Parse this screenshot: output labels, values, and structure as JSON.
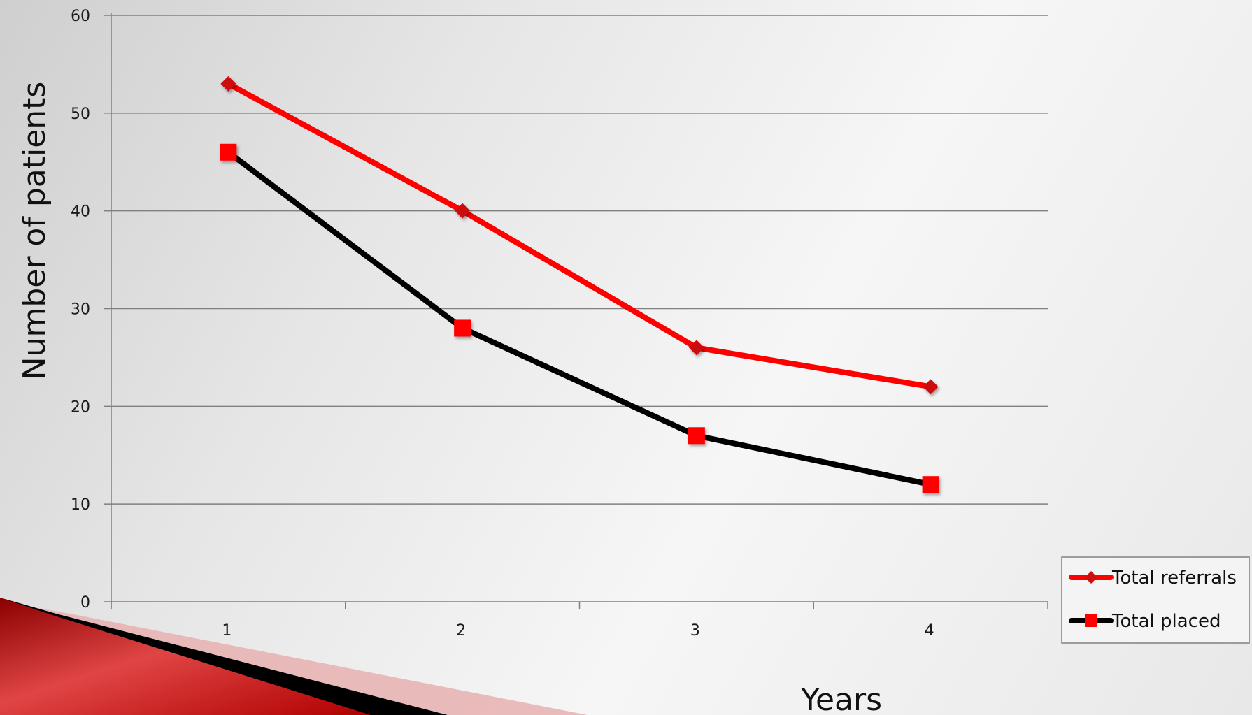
{
  "chart_data": {
    "type": "line",
    "title": "",
    "xlabel": "Years",
    "ylabel": "Number of patients",
    "categories": [
      "1",
      "2",
      "3",
      "4"
    ],
    "ylim": [
      0,
      60
    ],
    "yticks": [
      0,
      10,
      20,
      30,
      40,
      50,
      60
    ],
    "grid": true,
    "legend_position": "bottom-right",
    "series": [
      {
        "name": "Total referrals",
        "values": [
          53,
          40,
          26,
          22
        ],
        "line_color": "#ff0000",
        "marker": "diamond",
        "marker_color": "#cc1010"
      },
      {
        "name": "Total placed",
        "values": [
          46,
          28,
          17,
          12
        ],
        "line_color": "#000000",
        "marker": "square",
        "marker_color": "#ff0000"
      }
    ]
  },
  "theme": {
    "gridline_color": "#808080",
    "accent_red": "#c00000",
    "accent_dark": "#000000"
  }
}
